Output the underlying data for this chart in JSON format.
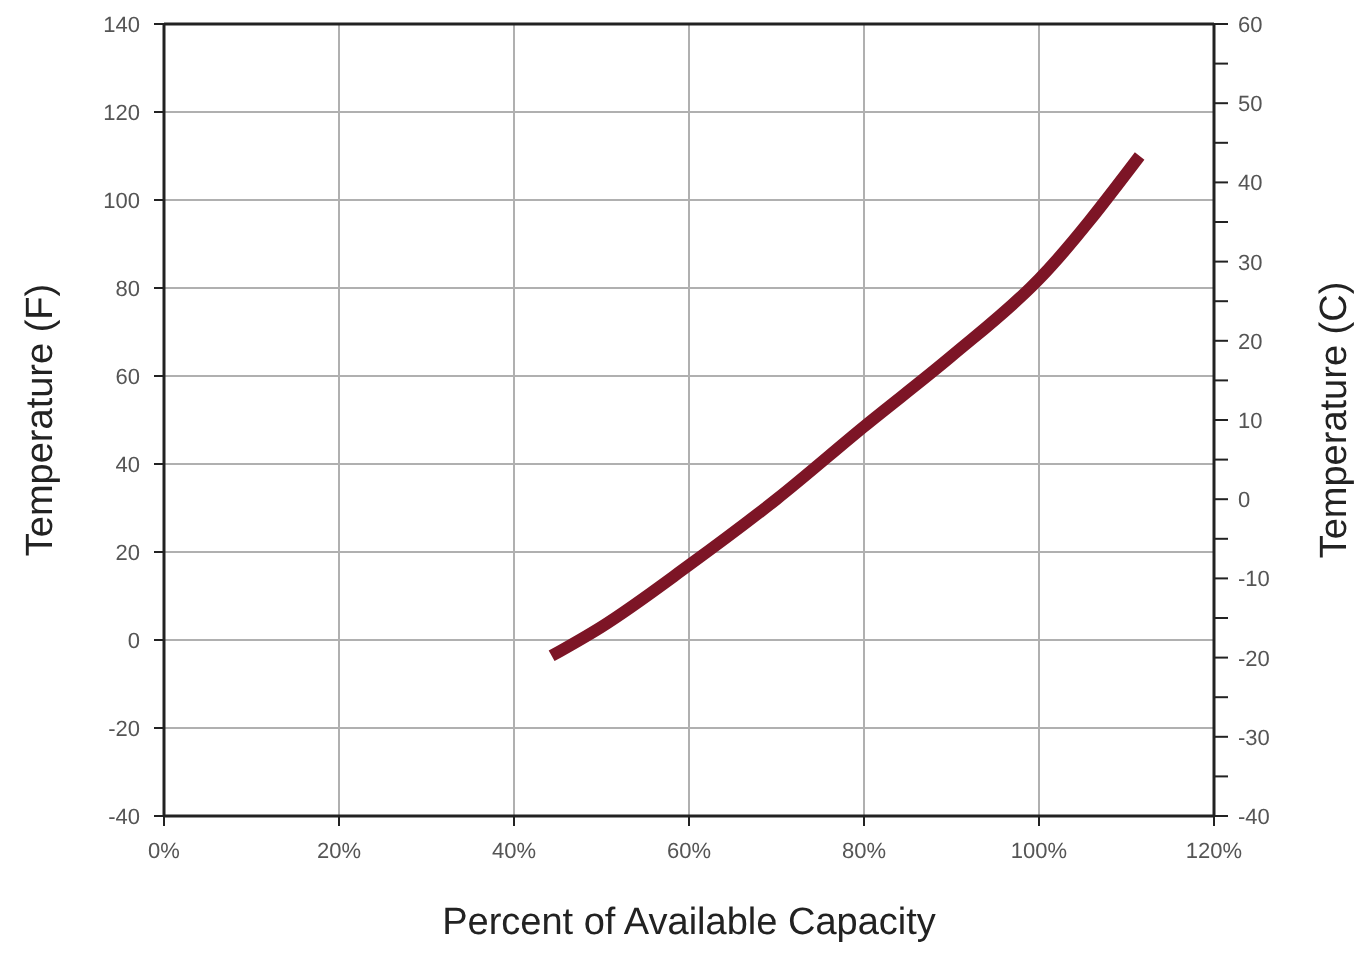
{
  "chart_data": {
    "type": "line",
    "xlabel": "Percent of Available Capacity",
    "ylabel": "Temperature (F)",
    "y2label": "Temperature (C)",
    "xlim": [
      0,
      120
    ],
    "xticks": [
      {
        "value": 0,
        "label": "0%"
      },
      {
        "value": 20,
        "label": "20%"
      },
      {
        "value": 40,
        "label": "40%"
      },
      {
        "value": 60,
        "label": "60%"
      },
      {
        "value": 80,
        "label": "80%"
      },
      {
        "value": 100,
        "label": "100%"
      },
      {
        "value": 120,
        "label": "120%"
      }
    ],
    "ylim": [
      -40,
      140
    ],
    "yticks": [
      -40,
      -20,
      0,
      20,
      40,
      60,
      80,
      100,
      120,
      140
    ],
    "y2lim": [
      -40,
      60
    ],
    "y2ticks": [
      -40,
      {
        "value": -35,
        "label": null
      },
      -30,
      {
        "value": -25,
        "label": null
      },
      -20,
      {
        "value": -15,
        "label": null
      },
      -10,
      {
        "value": -5,
        "label": null
      },
      0,
      {
        "value": 5,
        "label": null
      },
      10,
      {
        "value": 15,
        "label": null
      },
      20,
      {
        "value": 25,
        "label": null
      },
      30,
      {
        "value": 35,
        "label": null
      },
      40,
      {
        "value": 45,
        "label": null
      },
      50,
      {
        "value": 55,
        "label": null
      },
      60
    ],
    "grid": true,
    "series": [
      {
        "color": "#7d1526",
        "x": [
          44.3,
          50,
          60,
          70,
          80,
          90,
          100,
          111.5
        ],
        "values": [
          -3.6,
          3,
          17,
          32,
          48.5,
          64.5,
          82,
          110
        ]
      }
    ]
  }
}
